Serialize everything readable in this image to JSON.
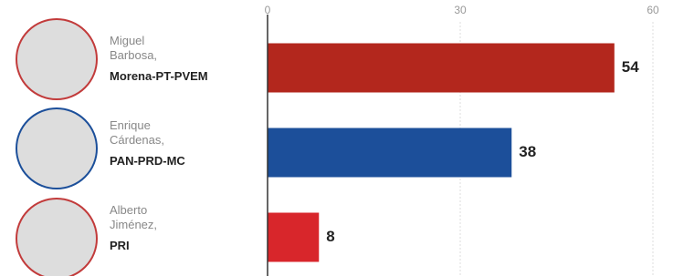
{
  "chart_data": {
    "type": "barh",
    "categories": [
      "Miguel Barbosa,",
      "Enrique Cárdenas,",
      "Alberto Jiménez,"
    ],
    "parties": [
      "Morena-PT-PVEM",
      "PAN-PRD-MC",
      "PRI"
    ],
    "values": [
      54,
      38,
      8
    ],
    "colors": [
      "#b3271d",
      "#1c4f9a",
      "#d8262b"
    ],
    "xlim": [
      0,
      60
    ],
    "xticks": [
      0,
      30,
      60
    ],
    "grid": true
  }
}
